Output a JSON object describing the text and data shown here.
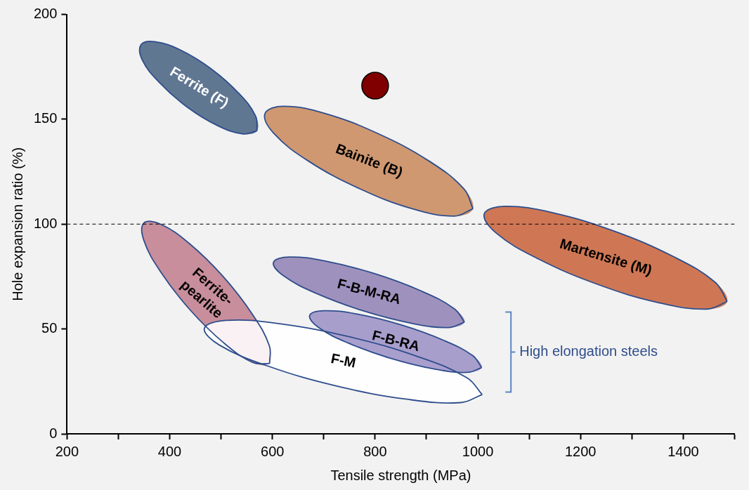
{
  "chart_data": {
    "type": "area",
    "xlabel": "Tensile strength (MPa)",
    "ylabel": "Hole expansion ratio (%)",
    "xlim": [
      200,
      1500
    ],
    "xticks": [
      200,
      {
        "value": 300,
        "label": null
      },
      400,
      {
        "value": 500,
        "label": null
      },
      600,
      {
        "value": 700,
        "label": null
      },
      800,
      {
        "value": 900,
        "label": null
      },
      1000,
      {
        "value": 1100,
        "label": null
      },
      1200,
      {
        "value": 1300,
        "label": null
      },
      1400,
      {
        "value": 1500,
        "label": null
      }
    ],
    "ylim": [
      0,
      200
    ],
    "yticks": [
      0,
      50,
      100,
      150,
      200
    ],
    "grid": false,
    "legend": false,
    "marker": "none",
    "ref_lines": [
      {
        "axis": "y",
        "value": 100,
        "color": "#000000",
        "line_style": "dashed"
      }
    ],
    "annotations": [
      "High elongation steels"
    ],
    "series": [
      {
        "name": "Ferrite (F)",
        "color": "#4b6584",
        "x": [
          570,
          567,
          534,
          481,
          421,
          371,
          344,
          347,
          380,
          433,
          493,
          543,
          570
        ],
        "values": [
          144.5,
          151.7,
          162.5,
          174,
          183,
          187,
          185.5,
          178,
          167.5,
          156,
          147,
          143,
          144.5
        ]
      },
      {
        "name": "Bainite (B)",
        "color": "#c98b5e",
        "x": [
          990.5,
          973,
          905.5,
          807,
          703.5,
          622,
          585.5,
          603,
          670.5,
          769,
          872.5,
          954,
          990.5
        ],
        "values": [
          107.3,
          116.8,
          130,
          143,
          152.7,
          156.2,
          152.7,
          143.2,
          130,
          117,
          107.3,
          103.8,
          107.3
        ]
      },
      {
        "name": "Martensite (M)",
        "color": "#c9653e",
        "x": [
          1485.5,
          1462,
          1381,
          1265,
          1144.6,
          1052,
          1012.5,
          1036,
          1117,
          1233,
          1353,
          1446,
          1485.5
        ],
        "values": [
          63.1,
          72.3,
          84.5,
          96.7,
          105.5,
          108.5,
          104.9,
          95.7,
          83.5,
          71.3,
          62.5,
          59.5,
          63.1
        ]
      },
      {
        "name": "Ferrite-pearlite",
        "color": "#c2808f",
        "x": [
          594.5,
          594,
          561,
          504,
          438.4,
          382,
          349.5,
          350,
          383,
          440,
          505.6,
          562,
          594.5
        ],
        "values": [
          33.5,
          42,
          57,
          75,
          90.7,
          100,
          100.5,
          92,
          77,
          59,
          43.3,
          34,
          33.5
        ]
      },
      {
        "name": "F-M",
        "color": "#ffffff",
        "x": [
          1008.5,
          979,
          884.6,
          751,
          614,
          510,
          467.5,
          497,
          591.4,
          725,
          862,
          966,
          1008.5
        ],
        "values": [
          18.7,
          26.7,
          36.7,
          46.2,
          52.5,
          54.1,
          50.3,
          42.3,
          32.3,
          22.8,
          16.5,
          14.9,
          18.7
        ]
      },
      {
        "name": "F-B-M-RA",
        "color": "#9383b5",
        "x": [
          974,
          954,
          889,
          797.4,
          703,
          631.7,
          602,
          622,
          687,
          778.6,
          873,
          944,
          974
        ],
        "values": [
          53.3,
          59.7,
          68.2,
          76.5,
          82.4,
          84.3,
          81.7,
          75.3,
          66.8,
          58.5,
          52.6,
          50.7,
          53.3
        ]
      },
      {
        "name": "F-B-RA",
        "color": "#9d92c6",
        "x": [
          1007.5,
          990,
          932.5,
          850,
          765,
          700,
          672.5,
          690,
          747.5,
          830,
          915,
          980,
          1007.5
        ],
        "values": [
          31.6,
          37.3,
          44.7,
          52,
          57.1,
          58.7,
          56.4,
          50.7,
          43.3,
          36,
          30.9,
          29.3,
          31.6
        ]
      },
      {
        "type": "scatter",
        "marker": "circle",
        "color": "#800000",
        "x": [
          800
        ],
        "values": [
          166
        ]
      }
    ]
  }
}
